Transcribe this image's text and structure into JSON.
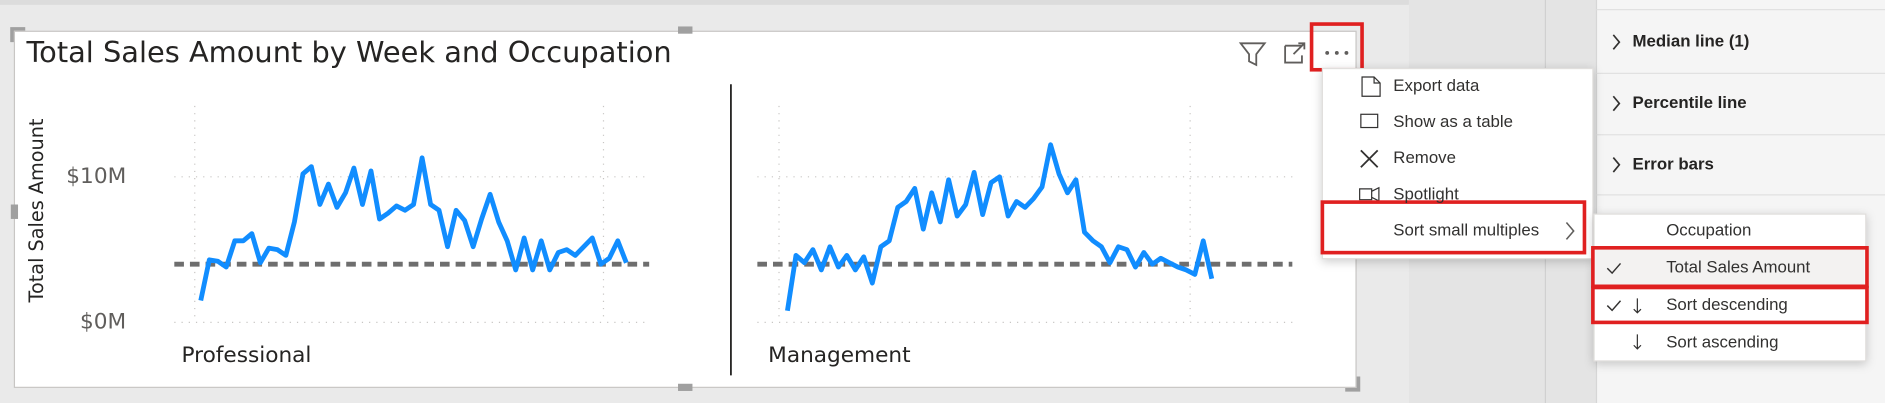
{
  "chart_data": {
    "type": "line",
    "title": "Total Sales Amount by Week and Occupation",
    "y_label": "Total Sales Amount",
    "ylim": [
      0,
      14500000
    ],
    "yticks": [
      {
        "value": 0,
        "label": "$0M"
      },
      {
        "value": 10000000,
        "label": "$10M"
      }
    ],
    "grid": true,
    "color": "#118dff",
    "median": 4000000,
    "series": [
      {
        "name": "Professional",
        "values": [
          1500000,
          4300000,
          4200000,
          3800000,
          5600000,
          5600000,
          6100000,
          4100000,
          5100000,
          5000000,
          4600000,
          6900000,
          10200000,
          10700000,
          8100000,
          9500000,
          7900000,
          8900000,
          10600000,
          8100000,
          10400000,
          7100000,
          7500000,
          8000000,
          7700000,
          8100000,
          11300000,
          8100000,
          7700000,
          5200000,
          7700000,
          7000000,
          5200000,
          7100000,
          8800000,
          6900000,
          5600000,
          3600000,
          5800000,
          3600000,
          5600000,
          3600000,
          4800000,
          5000000,
          4600000,
          5200000,
          5800000,
          4000000,
          4400000,
          5600000,
          4100000
        ]
      },
      {
        "name": "Management",
        "values": [
          800000,
          4600000,
          4100000,
          5000000,
          3600000,
          5200000,
          3800000,
          4600000,
          3600000,
          4500000,
          2700000,
          5200000,
          5600000,
          7900000,
          8300000,
          9200000,
          6400000,
          8900000,
          6900000,
          9800000,
          7300000,
          8100000,
          10300000,
          7400000,
          9600000,
          10000000,
          7300000,
          8300000,
          7900000,
          8500000,
          9300000,
          12200000,
          10200000,
          8900000,
          9800000,
          6200000,
          5600000,
          5200000,
          4100000,
          5200000,
          5000000,
          3800000,
          4800000,
          4000000,
          4400000,
          4100000,
          3800000,
          3600000,
          3300000,
          5600000,
          3000000
        ]
      }
    ]
  },
  "menu": {
    "items": [
      "Export data",
      "Show as a table",
      "Remove",
      "Spotlight",
      "Sort small multiples"
    ]
  },
  "submenu": {
    "items": [
      {
        "label": "Occupation",
        "checked": false
      },
      {
        "label": "Total Sales Amount",
        "checked": true
      },
      {
        "label": "Sort descending",
        "checked": true
      },
      {
        "label": "Sort ascending",
        "checked": false
      }
    ]
  },
  "format_pane": {
    "sections": [
      "Median line (1)",
      "Percentile line",
      "Error bars"
    ]
  }
}
